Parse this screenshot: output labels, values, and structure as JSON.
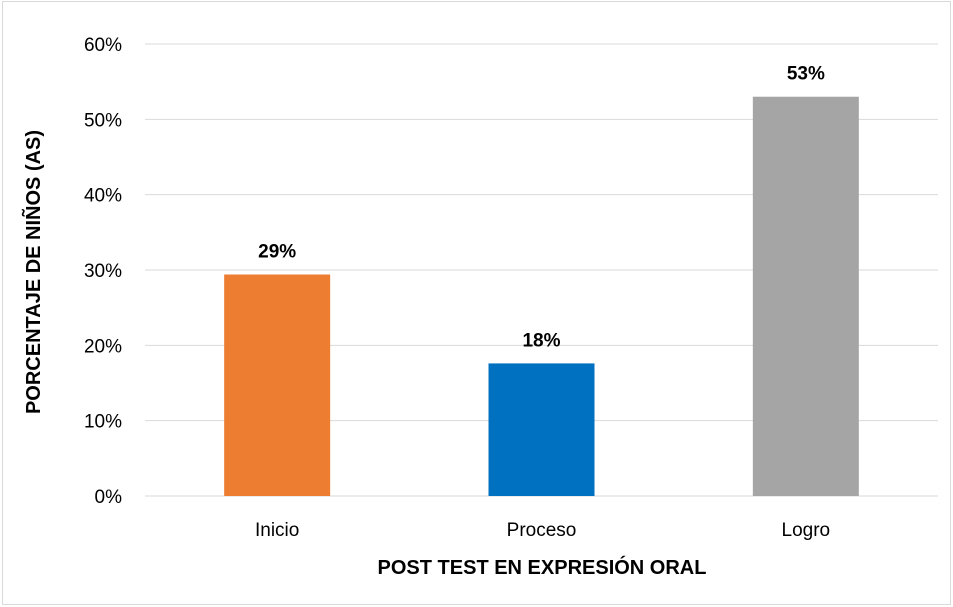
{
  "chart_data": {
    "type": "bar",
    "title": "",
    "xlabel": "POST TEST EN EXPRESIÓN ORAL",
    "ylabel": "PORCENTAJE DE NIÑOS (AS)",
    "categories": [
      "Inicio",
      "Proceso",
      "Logro"
    ],
    "values": [
      29.4,
      17.6,
      53.0
    ],
    "data_labels": [
      "29%",
      "18%",
      "53%"
    ],
    "colors": [
      "#ed7d31",
      "#0070c0",
      "#a5a5a5"
    ],
    "ylim": [
      0,
      60
    ],
    "yticks": [
      0,
      10,
      20,
      30,
      40,
      50,
      60
    ],
    "ytick_labels": [
      "0%",
      "10%",
      "20%",
      "30%",
      "40%",
      "50%",
      "60%"
    ],
    "grid": true,
    "legend": "none"
  }
}
